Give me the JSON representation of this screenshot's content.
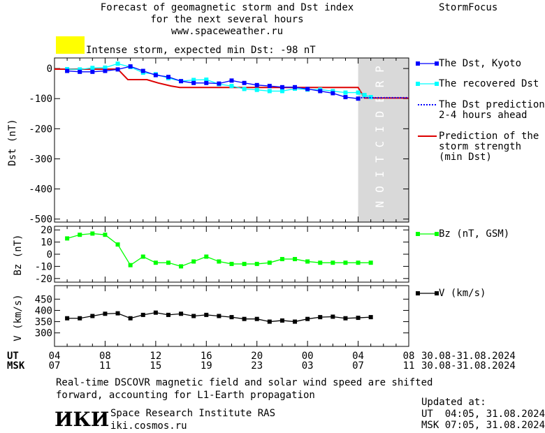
{
  "header": {
    "title_lines": [
      "Forecast of geomagnetic storm and Dst index",
      "for the next several hours",
      "www.spaceweather.ru"
    ],
    "brand": "StormFocus",
    "status_color": "#ffff00",
    "status_text": "Intense storm, expected min Dst: -98 nT"
  },
  "chart_data": [
    {
      "type": "line",
      "title": "",
      "ylabel": "Dst (nT)",
      "xlabel": "",
      "ylim": [
        -510,
        35
      ],
      "xlim": [
        4,
        32
      ],
      "yticks": [
        0,
        -100,
        -200,
        -300,
        -400,
        -500
      ],
      "ytick_labels": [
        "0",
        "-100",
        "-200",
        "-300",
        "-400",
        "-500"
      ],
      "prediction_label": "PREDICTION",
      "prediction_band": [
        28,
        32
      ],
      "series": [
        {
          "name": "The Dst, Kyoto",
          "color": "#0000ff",
          "marker": "square",
          "x": [
            5,
            6,
            7,
            8,
            9,
            10,
            11,
            12,
            13,
            14,
            15,
            16,
            17,
            18,
            19,
            20,
            21,
            22,
            23,
            24,
            25,
            26,
            27,
            28
          ],
          "y": [
            -8,
            -11,
            -11,
            -8,
            -3,
            7,
            -8,
            -22,
            -28,
            -42,
            -48,
            -48,
            -50,
            -40,
            -48,
            -55,
            -58,
            -62,
            -62,
            -68,
            -75,
            -82,
            -95,
            -100
          ]
        },
        {
          "name": "The recovered Dst",
          "color": "#00ffff",
          "marker": "square",
          "x": [
            5,
            6,
            7,
            8,
            9,
            10,
            11,
            12,
            13,
            14,
            15,
            16,
            17,
            18,
            19,
            20,
            21,
            22,
            23,
            24,
            25,
            26,
            27,
            28,
            28.5,
            29
          ],
          "y": [
            -2,
            -3,
            2,
            3,
            16,
            5,
            -14,
            -19,
            -32,
            -42,
            -38,
            -37,
            -52,
            -58,
            -68,
            -71,
            -75,
            -75,
            -67,
            -70,
            -70,
            -75,
            -80,
            -80,
            -88,
            -95
          ]
        },
        {
          "name": "The Dst prediction 2-4 hours ahead",
          "color": "#0000ff",
          "marker": "none",
          "style": "dotted",
          "x": [
            28,
            32
          ],
          "y": [
            -97,
            -97
          ]
        },
        {
          "name": "Prediction of the storm strength (min Dst)",
          "color": "#dd0000",
          "marker": "none",
          "x": [
            4,
            9,
            9.8,
            11.3,
            12.2,
            13.2,
            13.9,
            28,
            28.5,
            32
          ],
          "y": [
            -2,
            -2,
            -37,
            -37,
            -48,
            -58,
            -63,
            -63,
            -98,
            -98
          ]
        }
      ]
    },
    {
      "type": "line",
      "title": "",
      "ylabel": "Bz (nT)",
      "xlabel": "",
      "ylim": [
        -23,
        23
      ],
      "xlim": [
        4,
        32
      ],
      "yticks": [
        20,
        10,
        0,
        -10,
        -20
      ],
      "ytick_labels": [
        "20",
        "10",
        "0",
        "-10",
        "-20"
      ],
      "series": [
        {
          "name": "Bz (nT, GSM)",
          "color": "#00ff00",
          "marker": "square",
          "x": [
            5,
            6,
            7,
            8,
            9,
            10,
            11,
            12,
            13,
            14,
            15,
            16,
            17,
            18,
            19,
            20,
            21,
            22,
            23,
            24,
            25,
            26,
            27,
            28,
            29
          ],
          "y": [
            13,
            16,
            17,
            16,
            8,
            -9,
            -2,
            -7,
            -7,
            -10,
            -6,
            -2,
            -6,
            -8,
            -8,
            -8,
            -7,
            -4,
            -4,
            -6,
            -7,
            -7,
            -7,
            -7,
            -7
          ]
        }
      ]
    },
    {
      "type": "line",
      "title": "",
      "ylabel": "V (km/s)",
      "xlabel": "",
      "ylim": [
        240,
        510
      ],
      "xlim": [
        4,
        32
      ],
      "yticks": [
        450,
        400,
        350,
        300
      ],
      "ytick_labels": [
        "450",
        "400",
        "350",
        "300"
      ],
      "series": [
        {
          "name": "V (km/s)",
          "color": "#000000",
          "marker": "square",
          "x": [
            5,
            6,
            7,
            8,
            9,
            10,
            11,
            12,
            13,
            14,
            15,
            16,
            17,
            18,
            19,
            20,
            21,
            22,
            23,
            24,
            25,
            26,
            27,
            28,
            29
          ],
          "y": [
            365,
            365,
            375,
            385,
            387,
            365,
            380,
            390,
            380,
            385,
            375,
            380,
            375,
            370,
            362,
            362,
            350,
            355,
            350,
            362,
            370,
            372,
            365,
            367,
            370
          ]
        }
      ]
    }
  ],
  "xaxis": {
    "ut_label": "UT",
    "msk_label": "MSK",
    "ut_ticks": [
      "04",
      "08",
      "12",
      "16",
      "20",
      "00",
      "04",
      "08"
    ],
    "msk_ticks": [
      "07",
      "11",
      "15",
      "19",
      "23",
      "03",
      "07",
      "11"
    ],
    "date_range_ut": "30.08-31.08.2024",
    "date_range_msk": "30.08-31.08.2024"
  },
  "legend": {
    "dst_kyoto": "The Dst, Kyoto",
    "recovered": "The recovered Dst",
    "prediction_line1": "The Dst prediction",
    "prediction_line2": "2-4 hours ahead",
    "strength_line1": "Prediction of the",
    "strength_line2": "storm strength",
    "strength_line3": "(min Dst)",
    "bz": "Bz (nT, GSM)",
    "v": "V (km/s)"
  },
  "footer": {
    "note_line1": "Real-time DSCOVR magnetic field and solar wind speed are shifted",
    "note_line2": "forward, accounting for L1-Earth propagation",
    "logo_text": "ИКИ",
    "institute": "Space Research Institute RAS",
    "site": "iki.cosmos.ru",
    "updated_label": "Updated at:",
    "updated_ut": "UT  04:05, 31.08.2024",
    "updated_msk": "MSK 07:05, 31.08.2024"
  }
}
